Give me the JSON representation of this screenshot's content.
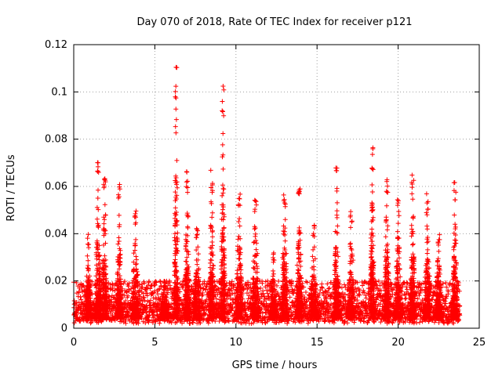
{
  "chart_data": {
    "type": "scatter",
    "title": "Day 070 of 2018, Rate Of TEC Index for receiver p121",
    "xlabel": "GPS time / hours",
    "ylabel": "ROTI / TECUs",
    "xlim": [
      0,
      25
    ],
    "ylim": [
      0,
      0.12
    ],
    "x_ticks": [
      0,
      5,
      10,
      15,
      20,
      25
    ],
    "x_tick_labels": [
      "0",
      "5",
      "10",
      "15",
      "20",
      "25"
    ],
    "y_ticks": [
      0,
      0.02,
      0.04,
      0.06,
      0.08,
      0.1,
      0.12
    ],
    "y_tick_labels": [
      "0",
      "0.02",
      "0.04",
      "0.06",
      "0.08",
      "0.1",
      "0.12"
    ],
    "grid": true,
    "marker": "plus",
    "color": "#ff0000",
    "time_range": [
      0,
      23.8
    ],
    "peaks": [
      {
        "x": 0.9,
        "y": 0.04,
        "w": 0.35
      },
      {
        "x": 1.5,
        "y": 0.071,
        "w": 0.35
      },
      {
        "x": 1.9,
        "y": 0.069,
        "w": 0.3
      },
      {
        "x": 2.8,
        "y": 0.064,
        "w": 0.3
      },
      {
        "x": 3.8,
        "y": 0.05,
        "w": 0.4
      },
      {
        "x": 5.6,
        "y": 0.02,
        "w": 0.5
      },
      {
        "x": 6.3,
        "y": 0.111,
        "w": 0.25
      },
      {
        "x": 7.0,
        "y": 0.069,
        "w": 0.3
      },
      {
        "x": 7.6,
        "y": 0.045,
        "w": 0.4
      },
      {
        "x": 8.5,
        "y": 0.067,
        "w": 0.3
      },
      {
        "x": 9.2,
        "y": 0.104,
        "w": 0.25
      },
      {
        "x": 10.2,
        "y": 0.06,
        "w": 0.4
      },
      {
        "x": 11.2,
        "y": 0.055,
        "w": 0.4
      },
      {
        "x": 12.3,
        "y": 0.032,
        "w": 0.4
      },
      {
        "x": 13.0,
        "y": 0.06,
        "w": 0.35
      },
      {
        "x": 13.9,
        "y": 0.061,
        "w": 0.35
      },
      {
        "x": 14.8,
        "y": 0.045,
        "w": 0.4
      },
      {
        "x": 16.2,
        "y": 0.068,
        "w": 0.3
      },
      {
        "x": 17.1,
        "y": 0.05,
        "w": 0.4
      },
      {
        "x": 18.4,
        "y": 0.079,
        "w": 0.25
      },
      {
        "x": 19.3,
        "y": 0.064,
        "w": 0.3
      },
      {
        "x": 20.0,
        "y": 0.055,
        "w": 0.35
      },
      {
        "x": 20.9,
        "y": 0.066,
        "w": 0.3
      },
      {
        "x": 21.8,
        "y": 0.057,
        "w": 0.35
      },
      {
        "x": 22.5,
        "y": 0.04,
        "w": 0.4
      },
      {
        "x": 23.5,
        "y": 0.063,
        "w": 0.3
      }
    ]
  }
}
